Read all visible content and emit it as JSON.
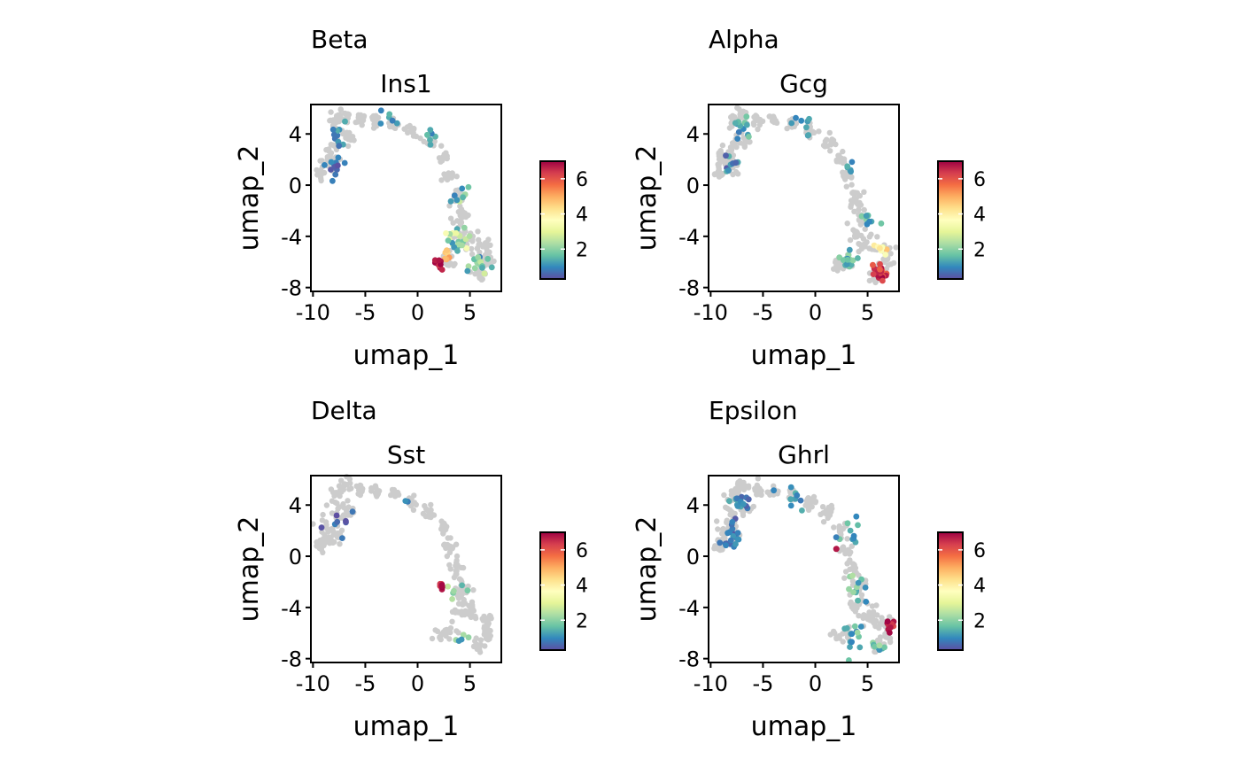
{
  "figure": {
    "colors": {
      "background_point": "#cccccc",
      "panel_border": "#000000",
      "colormap": [
        "#5e4fa2",
        "#3288bd",
        "#66c2a5",
        "#abdda4",
        "#e6f598",
        "#ffffbf",
        "#fee08b",
        "#fdae61",
        "#f46d43",
        "#d53e4f",
        "#9e0142"
      ]
    }
  },
  "chart_data": [
    {
      "type": "scatter",
      "group_label": "Beta",
      "title": "Ins1",
      "xlabel": "umap_1",
      "ylabel": "umap_2",
      "xlim": [
        -10.2,
        8.0
      ],
      "ylim": [
        -8.3,
        6.3
      ],
      "xticks": [
        "-10",
        "-5",
        "0",
        "5"
      ],
      "yticks": [
        "-8",
        "-4",
        "0",
        "4"
      ],
      "colorbar": {
        "ticks": [
          "2",
          "4",
          "6"
        ],
        "range": [
          0.3,
          7.0
        ]
      },
      "clusters": [
        {
          "cx": -8.0,
          "cy": 1.5,
          "n": 12,
          "spread": 0.9,
          "vmin": 0.3,
          "vmax": 1.2
        },
        {
          "cx": -7.5,
          "cy": 4.0,
          "n": 10,
          "spread": 1.0,
          "vmin": 0.5,
          "vmax": 1.5
        },
        {
          "cx": -3.0,
          "cy": 5.0,
          "n": 6,
          "spread": 1.0,
          "vmin": 0.8,
          "vmax": 1.5
        },
        {
          "cx": 1.0,
          "cy": 3.8,
          "n": 6,
          "spread": 0.7,
          "vmin": 0.8,
          "vmax": 1.6
        },
        {
          "cx": 4.0,
          "cy": -0.8,
          "n": 10,
          "spread": 0.9,
          "vmin": 0.8,
          "vmax": 2.8
        },
        {
          "cx": 3.8,
          "cy": -4.3,
          "n": 22,
          "spread": 1.0,
          "vmin": 1.0,
          "vmax": 3.5
        },
        {
          "cx": 6.0,
          "cy": -6.2,
          "n": 16,
          "spread": 0.9,
          "vmin": 0.8,
          "vmax": 3.0
        },
        {
          "cx": 3.0,
          "cy": -5.4,
          "n": 8,
          "spread": 0.6,
          "vmin": 4.0,
          "vmax": 5.5
        },
        {
          "cx": 2.0,
          "cy": -6.2,
          "n": 14,
          "spread": 0.4,
          "vmin": 6.3,
          "vmax": 7.0
        }
      ]
    },
    {
      "type": "scatter",
      "group_label": "Alpha",
      "title": "Gcg",
      "xlabel": "umap_1",
      "ylabel": "umap_2",
      "xlim": [
        -10.2,
        8.0
      ],
      "ylim": [
        -8.3,
        6.3
      ],
      "xticks": [
        "-10",
        "-5",
        "0",
        "5"
      ],
      "yticks": [
        "-8",
        "-4",
        "0",
        "4"
      ],
      "colorbar": {
        "ticks": [
          "2",
          "4",
          "6"
        ],
        "range": [
          0.3,
          7.0
        ]
      },
      "clusters": [
        {
          "cx": -8.0,
          "cy": 1.5,
          "n": 10,
          "spread": 1.0,
          "vmin": 0.4,
          "vmax": 1.5
        },
        {
          "cx": -7.0,
          "cy": 4.5,
          "n": 12,
          "spread": 1.0,
          "vmin": 0.8,
          "vmax": 2.0
        },
        {
          "cx": -1.0,
          "cy": 4.6,
          "n": 8,
          "spread": 1.5,
          "vmin": 0.8,
          "vmax": 1.4
        },
        {
          "cx": 3.5,
          "cy": 1.5,
          "n": 6,
          "spread": 0.8,
          "vmin": 0.8,
          "vmax": 1.5
        },
        {
          "cx": 5.0,
          "cy": -2.5,
          "n": 8,
          "spread": 0.9,
          "vmin": 0.8,
          "vmax": 2.0
        },
        {
          "cx": 3.0,
          "cy": -5.8,
          "n": 14,
          "spread": 0.8,
          "vmin": 0.8,
          "vmax": 2.5
        },
        {
          "cx": 6.5,
          "cy": -5.0,
          "n": 8,
          "spread": 0.5,
          "vmin": 3.0,
          "vmax": 5.0
        },
        {
          "cx": 6.2,
          "cy": -6.8,
          "n": 26,
          "spread": 0.55,
          "vmin": 5.8,
          "vmax": 7.0
        }
      ]
    },
    {
      "type": "scatter",
      "group_label": "Delta",
      "title": "Sst",
      "xlabel": "umap_1",
      "ylabel": "umap_2",
      "xlim": [
        -10.2,
        8.0
      ],
      "ylim": [
        -8.3,
        6.3
      ],
      "xticks": [
        "-10",
        "-5",
        "0",
        "5"
      ],
      "yticks": [
        "-8",
        "-4",
        "0",
        "4"
      ],
      "colorbar": {
        "ticks": [
          "2",
          "4",
          "6"
        ],
        "range": [
          0.3,
          7.0
        ]
      },
      "clusters": [
        {
          "cx": -7.5,
          "cy": 3.0,
          "n": 8,
          "spread": 1.2,
          "vmin": 0.3,
          "vmax": 1.0
        },
        {
          "cx": -1.0,
          "cy": 4.3,
          "n": 2,
          "spread": 0.5,
          "vmin": 0.8,
          "vmax": 1.2
        },
        {
          "cx": 3.5,
          "cy": -3.0,
          "n": 6,
          "spread": 0.9,
          "vmin": 1.0,
          "vmax": 3.0
        },
        {
          "cx": 4.5,
          "cy": -6.5,
          "n": 5,
          "spread": 1.0,
          "vmin": 0.8,
          "vmax": 2.5
        },
        {
          "cx": 2.3,
          "cy": -2.3,
          "n": 7,
          "spread": 0.3,
          "vmin": 6.3,
          "vmax": 7.0
        }
      ]
    },
    {
      "type": "scatter",
      "group_label": "Epsilon",
      "title": "Ghrl",
      "xlabel": "umap_1",
      "ylabel": "umap_2",
      "xlim": [
        -10.2,
        8.0
      ],
      "ylim": [
        -8.3,
        6.3
      ],
      "xticks": [
        "-10",
        "-5",
        "0",
        "5"
      ],
      "yticks": [
        "-8",
        "-4",
        "0",
        "4"
      ],
      "colorbar": {
        "ticks": [
          "2",
          "4",
          "6"
        ],
        "range": [
          0.3,
          7.0
        ]
      },
      "clusters": [
        {
          "cx": -8.0,
          "cy": 1.5,
          "n": 18,
          "spread": 1.0,
          "vmin": 0.3,
          "vmax": 1.2
        },
        {
          "cx": -7.0,
          "cy": 4.0,
          "n": 16,
          "spread": 1.2,
          "vmin": 0.4,
          "vmax": 1.5
        },
        {
          "cx": -2.0,
          "cy": 5.0,
          "n": 10,
          "spread": 1.8,
          "vmin": 0.8,
          "vmax": 1.6
        },
        {
          "cx": 3.5,
          "cy": 1.8,
          "n": 10,
          "spread": 1.0,
          "vmin": 0.8,
          "vmax": 1.8
        },
        {
          "cx": 4.0,
          "cy": -2.5,
          "n": 12,
          "spread": 1.0,
          "vmin": 0.8,
          "vmax": 2.5
        },
        {
          "cx": 3.5,
          "cy": -6.2,
          "n": 14,
          "spread": 1.0,
          "vmin": 0.8,
          "vmax": 2.2
        },
        {
          "cx": 6.0,
          "cy": -7.0,
          "n": 8,
          "spread": 0.6,
          "vmin": 1.0,
          "vmax": 3.0
        },
        {
          "cx": 7.2,
          "cy": -5.4,
          "n": 14,
          "spread": 0.4,
          "vmin": 6.0,
          "vmax": 7.0
        },
        {
          "cx": 2.0,
          "cy": 0.6,
          "n": 2,
          "spread": 0.15,
          "vmin": 6.5,
          "vmax": 7.0
        }
      ]
    }
  ]
}
